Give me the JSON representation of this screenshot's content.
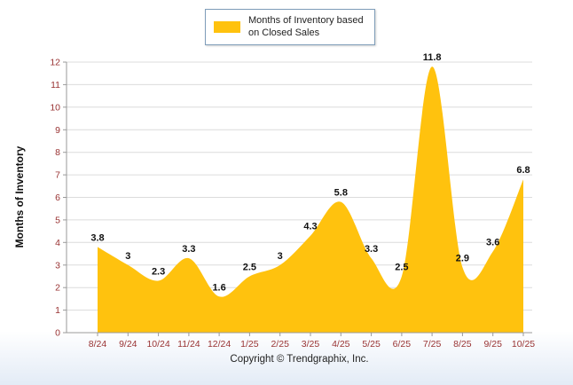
{
  "legend": {
    "line1": "Months of Inventory based",
    "line2": "on Closed Sales"
  },
  "ylabel": "Months of Inventory",
  "footer": {
    "copyright": "Copyright © Trendgraphix, Inc."
  },
  "colors": {
    "series": "#FFC20E",
    "grid": "#DCDCDC",
    "axis": "#999999",
    "tick": "#993333",
    "label": "#111111"
  },
  "chart_data": {
    "type": "area",
    "title": "",
    "legend": "Months of Inventory based on Closed Sales",
    "legend_position": "top-center",
    "categories": [
      "8/24",
      "9/24",
      "10/24",
      "11/24",
      "12/24",
      "1/25",
      "2/25",
      "3/25",
      "4/25",
      "5/25",
      "6/25",
      "7/25",
      "8/25",
      "9/25",
      "10/25"
    ],
    "values": [
      3.8,
      3,
      2.3,
      3.3,
      1.6,
      2.5,
      3,
      4.3,
      5.8,
      3.3,
      2.5,
      11.8,
      2.9,
      3.6,
      6.8
    ],
    "xlabel": "",
    "ylabel": "Months of Inventory",
    "ylim": [
      0,
      12
    ],
    "ytick_step": 1,
    "grid": "horizontal"
  }
}
